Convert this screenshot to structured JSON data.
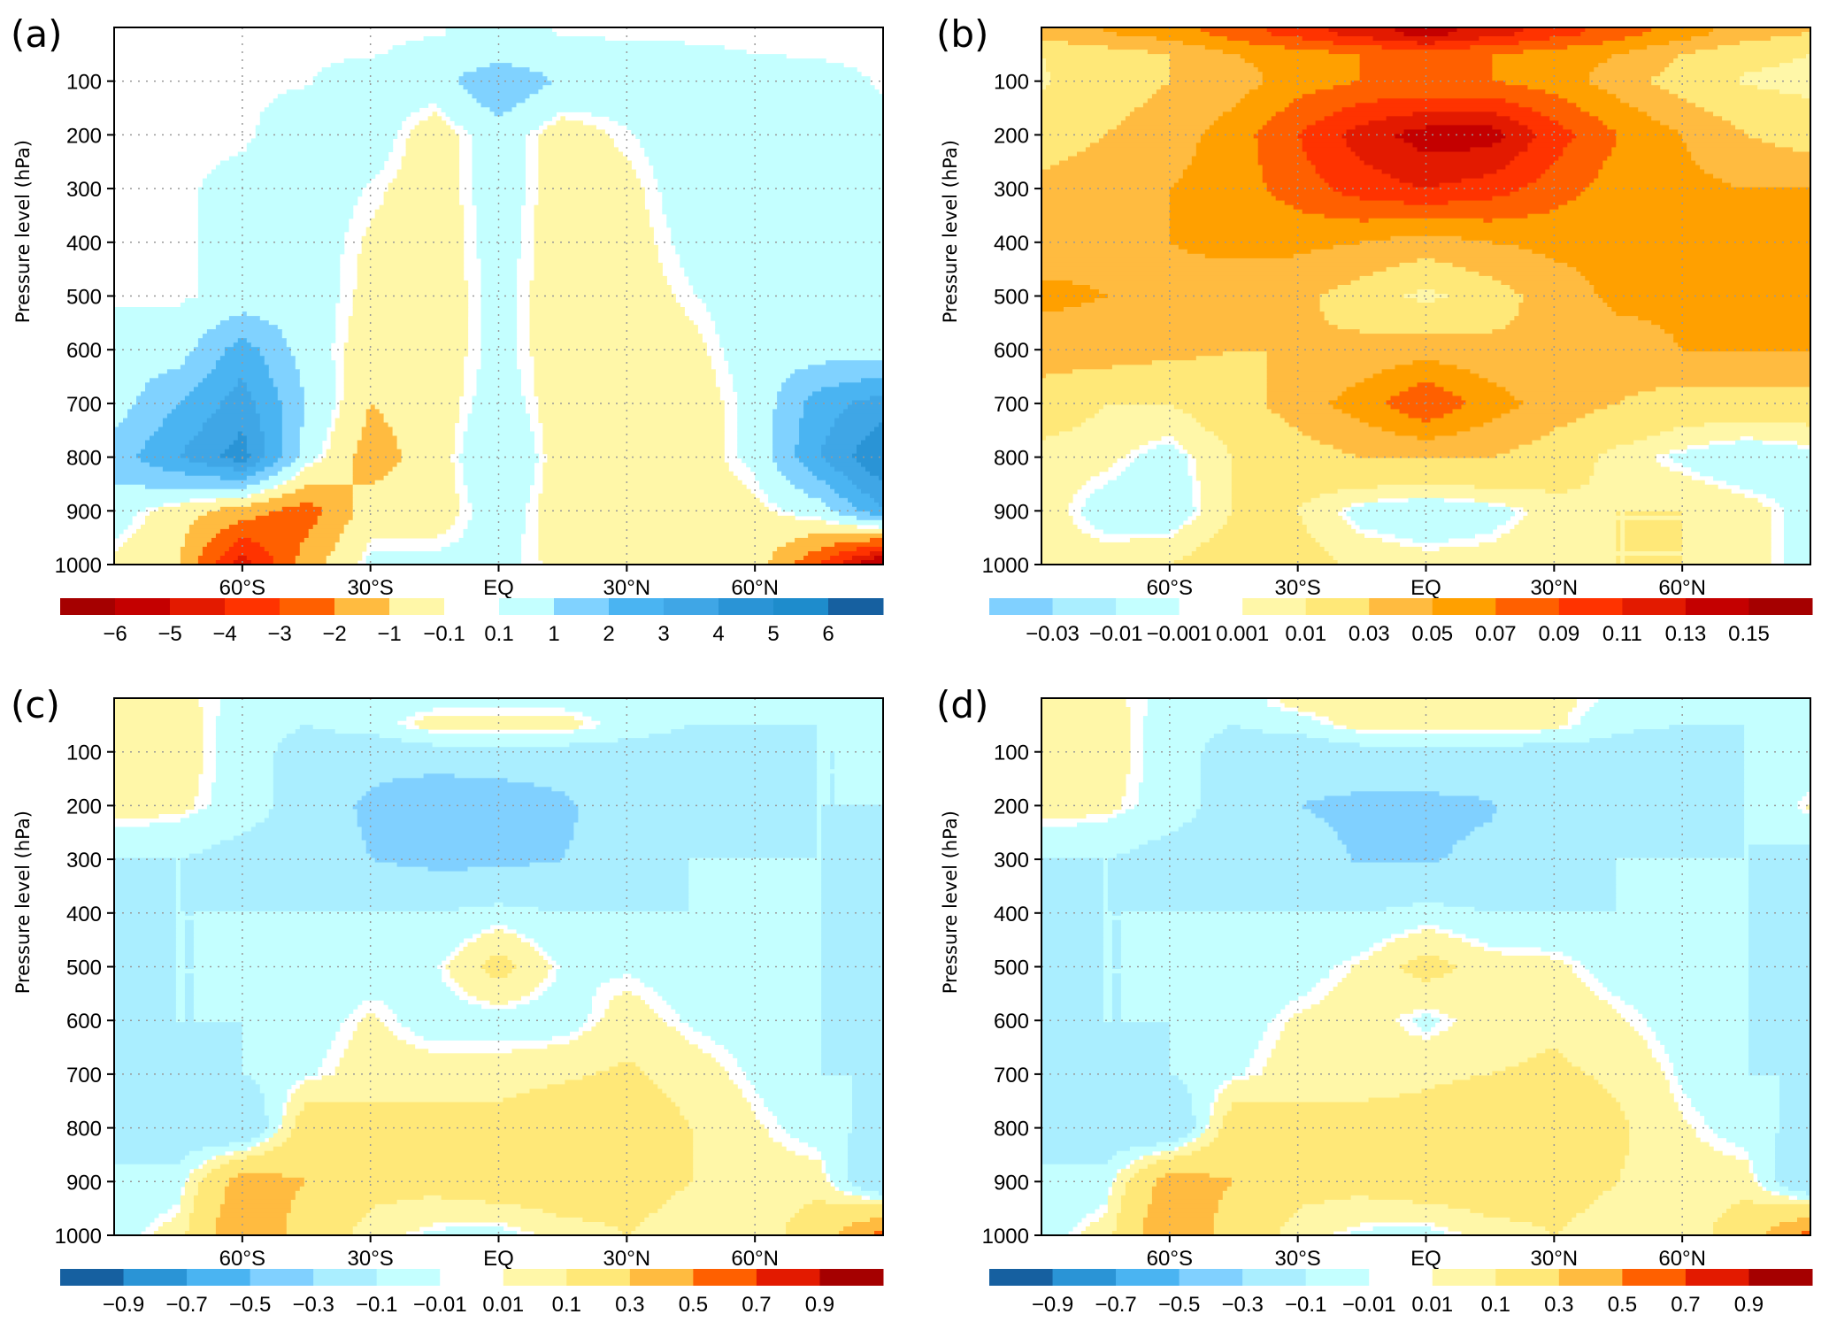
{
  "chart_data": [
    {
      "panel_label": "(a)",
      "type": "heatmap",
      "ylabel": "Pressure level (hPa)",
      "xlim": [
        -90,
        90
      ],
      "ylim": [
        1000,
        0
      ],
      "grid": true,
      "x_ticks": [
        {
          "value": -60,
          "label": "60°S"
        },
        {
          "value": -30,
          "label": "30°S"
        },
        {
          "value": 0,
          "label": "EQ"
        },
        {
          "value": 30,
          "label": "30°N"
        },
        {
          "value": 60,
          "label": "60°N"
        }
      ],
      "y_ticks": [
        100,
        200,
        300,
        400,
        500,
        600,
        700,
        800,
        900,
        1000
      ],
      "lat": [
        -90,
        -75,
        -60,
        -45,
        -30,
        -15,
        0,
        15,
        30,
        45,
        60,
        75,
        90
      ],
      "pressure": [
        10,
        50,
        100,
        200,
        300,
        400,
        500,
        600,
        700,
        800,
        900,
        1000
      ],
      "values": [
        [
          0,
          0,
          0,
          0,
          0,
          0.05,
          0.3,
          0.05,
          0,
          0,
          0,
          0,
          0
        ],
        [
          0,
          0,
          0,
          0,
          0.05,
          0.3,
          0.5,
          0.4,
          0.3,
          0.2,
          0.1,
          0.05,
          0
        ],
        [
          0,
          0,
          0,
          0.05,
          0.5,
          0.5,
          2,
          0.8,
          0.5,
          0.5,
          0.5,
          0.3,
          0.05
        ],
        [
          0,
          0,
          0,
          0.5,
          0.5,
          -0.5,
          0.5,
          -0.5,
          0.05,
          0.5,
          0.5,
          0.5,
          0.2
        ],
        [
          0,
          0,
          0.3,
          0.5,
          0.05,
          -0.5,
          0.5,
          -0.5,
          -0.3,
          0.5,
          0.5,
          0.5,
          0.3
        ],
        [
          0,
          0,
          0.3,
          0.5,
          -0.2,
          -0.5,
          0.4,
          -0.5,
          -0.4,
          0.3,
          0.5,
          0.5,
          0.3
        ],
        [
          0,
          0,
          0.3,
          0.5,
          -0.3,
          -0.5,
          0.3,
          -0.5,
          -0.5,
          0.05,
          0.5,
          0.5,
          0.3
        ],
        [
          0.5,
          0.5,
          2.5,
          0.5,
          -0.5,
          -0.5,
          0.3,
          -0.5,
          -0.5,
          -0.3,
          0.5,
          0.5,
          0.5
        ],
        [
          0.5,
          2,
          3.5,
          1,
          -1,
          -0.5,
          0.5,
          -0.5,
          -0.5,
          -0.5,
          0.3,
          2.5,
          3.5
        ],
        [
          1.5,
          3,
          4.5,
          0.5,
          -1.5,
          -0.5,
          1,
          -0.5,
          -0.8,
          -0.5,
          0.3,
          3,
          5
        ],
        [
          0.5,
          -0.5,
          -1.5,
          -2.5,
          -0.5,
          -0.5,
          0.5,
          -0.5,
          -0.5,
          -0.5,
          -0.3,
          0.5,
          3
        ],
        [
          -0.3,
          -1,
          -4.5,
          -1.5,
          0.3,
          0.3,
          0.3,
          -0.3,
          -0.3,
          -0.5,
          -0.5,
          -3,
          -6.5
        ]
      ],
      "colorbar": {
        "levels": [
          -6,
          -5,
          -4,
          -3,
          -2,
          -1,
          -0.1,
          0.1,
          1,
          2,
          3,
          4,
          5,
          6
        ],
        "level_labels": [
          "−6",
          "−5",
          "−4",
          "−3",
          "−2",
          "−1",
          "−0.1",
          "0.1",
          "1",
          "2",
          "3",
          "4",
          "5",
          "6"
        ],
        "colors": [
          "#a50000",
          "#c40000",
          "#e31a00",
          "#ff3300",
          "#ff6000",
          "#ffbb40",
          "#fff7a8",
          "#ffffff",
          "#c4ffff",
          "#80d2ff",
          "#4ab4f2",
          "#3fa6e6",
          "#2a94d6",
          "#1e8ccc",
          "#1660a0"
        ]
      }
    },
    {
      "panel_label": "(b)",
      "type": "heatmap",
      "ylabel": "Pressure level (hPa)",
      "xlim": [
        -90,
        90
      ],
      "ylim": [
        1000,
        0
      ],
      "grid": true,
      "x_ticks": [
        {
          "value": -60,
          "label": "60°S"
        },
        {
          "value": -30,
          "label": "30°S"
        },
        {
          "value": 0,
          "label": "EQ"
        },
        {
          "value": 30,
          "label": "30°N"
        },
        {
          "value": 60,
          "label": "60°N"
        }
      ],
      "y_ticks": [
        100,
        200,
        300,
        400,
        500,
        600,
        700,
        800,
        900,
        1000
      ],
      "lat": [
        -90,
        -75,
        -60,
        -45,
        -30,
        -15,
        0,
        15,
        30,
        45,
        60,
        75,
        90
      ],
      "pressure": [
        10,
        50,
        100,
        200,
        300,
        400,
        500,
        600,
        700,
        800,
        900,
        1000
      ],
      "values": [
        [
          0.04,
          0.05,
          0.06,
          0.08,
          0.1,
          0.12,
          0.14,
          0.12,
          0.1,
          0.08,
          0.06,
          0.04,
          0.03
        ],
        [
          0.01,
          0.02,
          0.03,
          0.05,
          0.06,
          0.07,
          0.08,
          0.07,
          0.06,
          0.05,
          0.03,
          0.015,
          0.01
        ],
        [
          0.008,
          0.02,
          0.03,
          0.04,
          0.06,
          0.07,
          0.07,
          0.07,
          0.06,
          0.04,
          0.02,
          0.008,
          0.005
        ],
        [
          0.02,
          0.03,
          0.04,
          0.06,
          0.09,
          0.12,
          0.14,
          0.14,
          0.1,
          0.07,
          0.05,
          0.03,
          0.02
        ],
        [
          0.035,
          0.04,
          0.05,
          0.06,
          0.08,
          0.1,
          0.11,
          0.1,
          0.08,
          0.06,
          0.055,
          0.05,
          0.05
        ],
        [
          0.04,
          0.045,
          0.05,
          0.055,
          0.055,
          0.05,
          0.04,
          0.05,
          0.055,
          0.055,
          0.055,
          0.055,
          0.055
        ],
        [
          0.055,
          0.05,
          0.045,
          0.04,
          0.035,
          0.02,
          0.005,
          0.02,
          0.04,
          0.055,
          0.055,
          0.055,
          0.055
        ],
        [
          0.04,
          0.04,
          0.035,
          0.03,
          0.03,
          0.035,
          0.04,
          0.035,
          0.03,
          0.04,
          0.05,
          0.05,
          0.05
        ],
        [
          0.02,
          0.01,
          0.01,
          0.02,
          0.04,
          0.06,
          0.09,
          0.06,
          0.04,
          0.03,
          0.02,
          0.02,
          0.02
        ],
        [
          0.005,
          0.003,
          -0.005,
          0.01,
          0.02,
          0.03,
          0.03,
          0.03,
          0.02,
          0.005,
          -0.003,
          -0.01,
          -0.005
        ],
        [
          0.005,
          -0.005,
          -0.008,
          0.01,
          0.01,
          -0.005,
          -0.01,
          -0.005,
          0.005,
          0.01,
          0.01,
          0.005,
          -0.005
        ],
        [
          0.005,
          0.005,
          0.01,
          0.02,
          0.015,
          0.008,
          0.005,
          0.005,
          0.008,
          0.01,
          0.01,
          0.005,
          -0.005
        ]
      ],
      "colorbar": {
        "levels": [
          -0.03,
          -0.01,
          -0.001,
          0.001,
          0.01,
          0.03,
          0.05,
          0.07,
          0.09,
          0.11,
          0.13,
          0.15
        ],
        "level_labels": [
          "−0.03",
          "−0.01",
          "−0.001",
          "0.001",
          "0.01",
          "0.03",
          "0.05",
          "0.07",
          "0.09",
          "0.11",
          "0.13",
          "0.15"
        ],
        "colors": [
          "#80d0ff",
          "#aaeeff",
          "#c4ffff",
          "#ffffff",
          "#fff7a8",
          "#ffe878",
          "#ffbb40",
          "#ffa000",
          "#ff6000",
          "#ff3300",
          "#e31a00",
          "#c40000",
          "#a50000"
        ]
      }
    },
    {
      "panel_label": "(c)",
      "type": "heatmap",
      "ylabel": "Pressure level (hPa)",
      "xlim": [
        -90,
        90
      ],
      "ylim": [
        1000,
        0
      ],
      "grid": true,
      "x_ticks": [
        {
          "value": -60,
          "label": "60°S"
        },
        {
          "value": -30,
          "label": "30°S"
        },
        {
          "value": 0,
          "label": "EQ"
        },
        {
          "value": 30,
          "label": "30°N"
        },
        {
          "value": 60,
          "label": "60°N"
        }
      ],
      "y_ticks": [
        100,
        200,
        300,
        400,
        500,
        600,
        700,
        800,
        900,
        1000
      ],
      "lat": [
        -90,
        -75,
        -60,
        -45,
        -30,
        -15,
        0,
        15,
        30,
        45,
        60,
        75,
        90
      ],
      "pressure": [
        10,
        50,
        100,
        200,
        300,
        400,
        500,
        600,
        700,
        800,
        900,
        1000
      ],
      "values": [
        [
          0.05,
          0.03,
          -0.03,
          -0.05,
          -0.05,
          -0.03,
          -0.03,
          -0.03,
          -0.05,
          -0.05,
          -0.05,
          -0.05,
          -0.03
        ],
        [
          0.05,
          0.05,
          -0.05,
          -0.1,
          -0.05,
          0.05,
          0.05,
          0.05,
          -0.05,
          -0.1,
          -0.1,
          -0.1,
          -0.05
        ],
        [
          0.05,
          0.05,
          -0.05,
          -0.15,
          -0.2,
          -0.15,
          -0.15,
          -0.15,
          -0.15,
          -0.15,
          -0.15,
          -0.1,
          -0.1
        ],
        [
          0.05,
          0.03,
          -0.05,
          -0.15,
          -0.35,
          -0.5,
          -0.45,
          -0.35,
          -0.15,
          -0.15,
          -0.15,
          -0.1,
          -0.1
        ],
        [
          -0.1,
          -0.1,
          -0.15,
          -0.15,
          -0.3,
          -0.35,
          -0.35,
          -0.3,
          -0.2,
          -0.1,
          -0.1,
          -0.1,
          -0.15
        ],
        [
          -0.15,
          -0.1,
          -0.1,
          -0.1,
          -0.1,
          -0.1,
          -0.05,
          -0.1,
          -0.1,
          -0.1,
          -0.05,
          -0.1,
          -0.15
        ],
        [
          -0.15,
          -0.1,
          -0.1,
          -0.08,
          -0.05,
          -0.02,
          0.15,
          -0.02,
          -0.02,
          -0.05,
          -0.05,
          -0.1,
          -0.15
        ],
        [
          -0.15,
          -0.1,
          -0.1,
          -0.05,
          0.02,
          -0.05,
          -0.05,
          -0.05,
          0.05,
          -0.02,
          -0.05,
          -0.1,
          -0.15
        ],
        [
          -0.1,
          -0.15,
          -0.1,
          -0.02,
          0.05,
          0.05,
          0.05,
          0.08,
          0.12,
          0.05,
          -0.02,
          -0.1,
          -0.1
        ],
        [
          -0.1,
          -0.2,
          -0.3,
          0.2,
          0.15,
          0.15,
          0.15,
          0.2,
          0.2,
          0.1,
          0.02,
          -0.05,
          -0.15
        ],
        [
          -0.1,
          -0.05,
          0.4,
          0.3,
          0.15,
          0.15,
          0.2,
          0.2,
          0.15,
          0.1,
          0.05,
          0.05,
          -0.3
        ],
        [
          -0.05,
          0.05,
          0.5,
          0.2,
          0.05,
          -0.03,
          -0.05,
          0.05,
          0.1,
          0.05,
          0.02,
          0.2,
          0.6
        ]
      ],
      "colorbar": {
        "levels": [
          -0.9,
          -0.7,
          -0.5,
          -0.3,
          -0.1,
          -0.01,
          0.01,
          0.1,
          0.3,
          0.5,
          0.7,
          0.9
        ],
        "level_labels": [
          "−0.9",
          "−0.7",
          "−0.5",
          "−0.3",
          "−0.1",
          "−0.01",
          "0.01",
          "0.1",
          "0.3",
          "0.5",
          "0.7",
          "0.9"
        ],
        "colors": [
          "#1660a0",
          "#2a94d6",
          "#4ab4f2",
          "#80d0ff",
          "#aaeeff",
          "#c4ffff",
          "#ffffff",
          "#fff7a8",
          "#ffe878",
          "#ffbb40",
          "#ff6000",
          "#e31a00",
          "#a50000"
        ]
      }
    },
    {
      "panel_label": "(d)",
      "type": "heatmap",
      "ylabel": "Pressure level (hPa)",
      "xlim": [
        -90,
        90
      ],
      "ylim": [
        1000,
        0
      ],
      "grid": true,
      "x_ticks": [
        {
          "value": -60,
          "label": "60°S"
        },
        {
          "value": -30,
          "label": "30°S"
        },
        {
          "value": 0,
          "label": "EQ"
        },
        {
          "value": 30,
          "label": "30°N"
        },
        {
          "value": 60,
          "label": "60°N"
        }
      ],
      "y_ticks": [
        100,
        200,
        300,
        400,
        500,
        600,
        700,
        800,
        900,
        1000
      ],
      "lat": [
        -90,
        -75,
        -60,
        -45,
        -30,
        -15,
        0,
        15,
        30,
        45,
        60,
        75,
        90
      ],
      "pressure": [
        10,
        50,
        100,
        200,
        300,
        400,
        500,
        600,
        700,
        800,
        900,
        1000
      ],
      "values": [
        [
          0.05,
          0.03,
          -0.03,
          -0.05,
          0.03,
          0.05,
          0.05,
          0.05,
          0.03,
          -0.03,
          -0.05,
          -0.05,
          -0.03
        ],
        [
          0.05,
          0.05,
          -0.05,
          -0.1,
          -0.05,
          0.05,
          0.05,
          0.05,
          0.03,
          -0.08,
          -0.1,
          -0.1,
          -0.05
        ],
        [
          0.05,
          0.05,
          -0.05,
          -0.15,
          -0.2,
          -0.15,
          -0.15,
          -0.15,
          -0.15,
          -0.15,
          -0.15,
          -0.1,
          -0.1
        ],
        [
          0.05,
          0.03,
          -0.05,
          -0.15,
          -0.3,
          -0.35,
          -0.35,
          -0.32,
          -0.15,
          -0.15,
          -0.15,
          -0.1,
          0.02
        ],
        [
          -0.1,
          -0.1,
          -0.15,
          -0.15,
          -0.2,
          -0.32,
          -0.32,
          -0.25,
          -0.15,
          -0.1,
          -0.1,
          -0.1,
          -0.15
        ],
        [
          -0.15,
          -0.1,
          -0.1,
          -0.1,
          -0.1,
          -0.1,
          -0.05,
          -0.1,
          -0.1,
          -0.1,
          -0.05,
          -0.1,
          -0.15
        ],
        [
          -0.15,
          -0.1,
          -0.1,
          -0.08,
          -0.05,
          0.02,
          0.15,
          0.05,
          0.03,
          -0.05,
          -0.05,
          -0.1,
          -0.15
        ],
        [
          -0.15,
          -0.1,
          -0.1,
          -0.05,
          0.02,
          0.05,
          -0.03,
          0.05,
          0.08,
          0.02,
          -0.05,
          -0.1,
          -0.15
        ],
        [
          -0.1,
          -0.15,
          -0.1,
          -0.02,
          0.05,
          0.05,
          0.08,
          0.1,
          0.12,
          0.08,
          -0.02,
          -0.1,
          -0.1
        ],
        [
          -0.1,
          -0.2,
          -0.3,
          0.2,
          0.15,
          0.15,
          0.15,
          0.2,
          0.2,
          0.12,
          0.02,
          -0.05,
          -0.15
        ],
        [
          -0.1,
          -0.05,
          0.4,
          0.3,
          0.15,
          0.15,
          0.2,
          0.2,
          0.15,
          0.1,
          0.05,
          0.05,
          -0.3
        ],
        [
          -0.05,
          0.05,
          0.5,
          0.2,
          0.05,
          -0.03,
          -0.05,
          0.05,
          0.1,
          0.05,
          0.02,
          0.2,
          0.6
        ]
      ],
      "colorbar": {
        "levels": [
          -0.9,
          -0.7,
          -0.5,
          -0.3,
          -0.1,
          -0.01,
          0.01,
          0.1,
          0.3,
          0.5,
          0.7,
          0.9
        ],
        "level_labels": [
          "−0.9",
          "−0.7",
          "−0.5",
          "−0.3",
          "−0.1",
          "−0.01",
          "0.01",
          "0.1",
          "0.3",
          "0.5",
          "0.7",
          "0.9"
        ],
        "colors": [
          "#1660a0",
          "#2a94d6",
          "#4ab4f2",
          "#80d0ff",
          "#aaeeff",
          "#c4ffff",
          "#ffffff",
          "#fff7a8",
          "#ffe878",
          "#ffbb40",
          "#ff6000",
          "#e31a00",
          "#a50000"
        ]
      }
    }
  ]
}
